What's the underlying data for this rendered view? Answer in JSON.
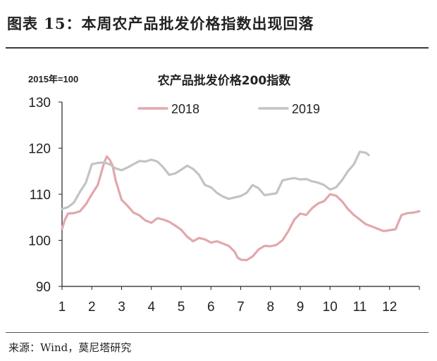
{
  "figure": {
    "title": "图表 15：本周农产品批发价格指数出现回落",
    "source": "来源：Wind，莫尼塔研究"
  },
  "colors": {
    "series_2018": "#e3a7ab",
    "series_2019": "#c3c3c3",
    "axis": "#222222"
  },
  "chart_data": {
    "type": "line",
    "title": "农产品批发价格200指数",
    "base_note": "2015年=100",
    "x_ticks": [
      "1",
      "2",
      "3",
      "4",
      "5",
      "6",
      "7",
      "8",
      "9",
      "10",
      "11",
      "12"
    ],
    "xlim": [
      1,
      13
    ],
    "ylim": [
      90,
      130
    ],
    "y_ticks": [
      "90",
      "100",
      "110",
      "120",
      "130"
    ],
    "grid": false,
    "legend_position": "top",
    "series": [
      {
        "name": "2018",
        "color": "#e3a7ab",
        "x": [
          1.0,
          1.1,
          1.2,
          1.4,
          1.6,
          1.8,
          2.0,
          2.2,
          2.4,
          2.5,
          2.6,
          2.7,
          2.8,
          3.0,
          3.2,
          3.4,
          3.6,
          3.8,
          4.0,
          4.2,
          4.4,
          4.6,
          4.8,
          5.0,
          5.2,
          5.4,
          5.6,
          5.8,
          6.0,
          6.2,
          6.4,
          6.6,
          6.8,
          6.9,
          7.0,
          7.2,
          7.4,
          7.6,
          7.8,
          8.0,
          8.2,
          8.4,
          8.6,
          8.8,
          9.0,
          9.2,
          9.4,
          9.6,
          9.8,
          10.0,
          10.2,
          10.4,
          10.6,
          10.8,
          11.0,
          11.2,
          11.4,
          11.6,
          11.8,
          12.0,
          12.2,
          12.4,
          12.6,
          12.8,
          13.0
        ],
        "y": [
          102.5,
          104.5,
          105.8,
          105.9,
          106.3,
          107.8,
          110.0,
          112.0,
          116.5,
          118.2,
          117.5,
          116.2,
          113.0,
          108.8,
          107.5,
          106.0,
          105.4,
          104.3,
          103.8,
          104.8,
          104.5,
          104.0,
          103.2,
          102.3,
          100.8,
          99.8,
          100.5,
          100.2,
          99.5,
          99.8,
          99.3,
          98.8,
          97.5,
          96.2,
          95.8,
          95.7,
          96.5,
          98.0,
          98.8,
          98.7,
          99.0,
          100.0,
          102.0,
          104.5,
          105.8,
          105.5,
          107.0,
          108.0,
          108.5,
          110.0,
          109.7,
          108.5,
          106.8,
          105.5,
          104.5,
          103.5,
          103.0,
          102.5,
          102.0,
          102.2,
          102.4,
          105.5,
          105.9,
          106.0,
          106.3
        ]
      },
      {
        "name": "2019",
        "color": "#c3c3c3",
        "x": [
          1.0,
          1.2,
          1.4,
          1.6,
          1.8,
          2.0,
          2.2,
          2.4,
          2.6,
          2.8,
          3.0,
          3.2,
          3.4,
          3.6,
          3.8,
          4.0,
          4.2,
          4.4,
          4.6,
          4.8,
          5.0,
          5.2,
          5.4,
          5.6,
          5.8,
          6.0,
          6.2,
          6.4,
          6.6,
          6.8,
          7.0,
          7.2,
          7.4,
          7.6,
          7.8,
          8.0,
          8.2,
          8.4,
          8.6,
          8.8,
          9.0,
          9.2,
          9.4,
          9.6,
          9.8,
          10.0,
          10.2,
          10.4,
          10.6,
          10.8,
          11.0,
          11.2,
          11.3
        ],
        "y": [
          106.8,
          107.2,
          108.2,
          110.5,
          112.5,
          116.5,
          116.8,
          116.9,
          116.5,
          115.6,
          115.2,
          115.8,
          116.5,
          117.2,
          117.1,
          117.5,
          117.1,
          115.8,
          114.2,
          114.5,
          115.3,
          116.2,
          115.5,
          114.2,
          112.0,
          111.5,
          110.3,
          109.5,
          109.0,
          109.3,
          109.6,
          110.3,
          112.0,
          111.3,
          109.8,
          110.0,
          110.2,
          113.0,
          113.3,
          113.5,
          113.2,
          113.3,
          112.8,
          112.5,
          112.0,
          111.0,
          111.5,
          113.0,
          115.0,
          116.5,
          119.2,
          119.0,
          118.5
        ]
      }
    ]
  }
}
